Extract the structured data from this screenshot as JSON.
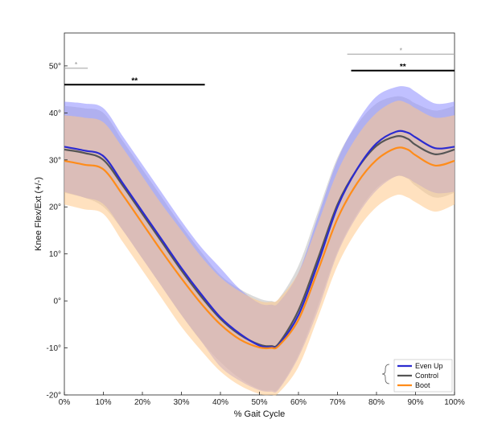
{
  "chart_data": {
    "type": "line",
    "xlabel": "% Gait Cycle",
    "ylabel": "Knee Flex/Ext (+/-)",
    "xlim": [
      0,
      100
    ],
    "ylim": [
      -20,
      57
    ],
    "x_ticks": [
      0,
      10,
      20,
      30,
      40,
      50,
      60,
      70,
      80,
      90,
      100
    ],
    "x_tick_labels": [
      "0%",
      "10%",
      "20%",
      "30%",
      "40%",
      "50%",
      "60%",
      "70%",
      "80%",
      "90%",
      "100%"
    ],
    "y_ticks": [
      -20,
      -10,
      0,
      10,
      20,
      30,
      40,
      50
    ],
    "y_tick_labels": [
      "-20°",
      "-10°",
      "0°",
      "10°",
      "20°",
      "30°",
      "40°",
      "50°"
    ],
    "grid": false,
    "legend_position": "bottom-right",
    "x": [
      0,
      5,
      10,
      15,
      20,
      25,
      30,
      35,
      40,
      45,
      50,
      53,
      55,
      60,
      65,
      70,
      75,
      80,
      85,
      88,
      90,
      95,
      100
    ],
    "series": [
      {
        "name": "Even Up",
        "color": "#2b2bd0",
        "band_color": "#8c8cff",
        "values": [
          32.8,
          32,
          30.8,
          25,
          19,
          13,
          7,
          1.5,
          -3.5,
          -7,
          -9.5,
          -9.8,
          -9.3,
          -3,
          8,
          20,
          28,
          33.5,
          36,
          35.8,
          34.8,
          32.5,
          32.8
        ],
        "upper": [
          42.4,
          42,
          41,
          35,
          29,
          23,
          17,
          11.5,
          7,
          2.5,
          -0.5,
          -0.8,
          -0.3,
          6,
          18,
          30,
          38,
          43.5,
          45.5,
          45.5,
          44.5,
          42,
          42.4
        ],
        "lower": [
          23.2,
          22,
          20.6,
          15,
          9,
          3,
          -3,
          -8.5,
          -14,
          -17,
          -19,
          -19.3,
          -18.8,
          -12,
          -2,
          10,
          18,
          23.5,
          26.5,
          26.1,
          25.1,
          23,
          23.2
        ]
      },
      {
        "name": "Control",
        "color": "#555555",
        "band_color": "#bdbdbd",
        "values": [
          32.2,
          31.5,
          30,
          24.5,
          18.5,
          12.5,
          6.5,
          1,
          -3.8,
          -7.2,
          -9.3,
          -9.6,
          -9,
          -2,
          9,
          20.5,
          28,
          33,
          35,
          34.5,
          33.2,
          31.2,
          32.2
        ],
        "upper": [
          41.5,
          41,
          40,
          34,
          28,
          22,
          16,
          10.5,
          5.5,
          2.5,
          0.5,
          0,
          0.5,
          7.5,
          19,
          30.5,
          37.5,
          42,
          43.5,
          43,
          42,
          40.5,
          41.5
        ],
        "lower": [
          23,
          22,
          20,
          15,
          9,
          3,
          -3,
          -8.5,
          -13,
          -16.5,
          -18.8,
          -19,
          -18.5,
          -11.5,
          -1,
          10.5,
          18.5,
          24,
          26.5,
          26,
          24.5,
          22,
          23
        ]
      },
      {
        "name": "Boot",
        "color": "#ff8c1a",
        "band_color": "#ffc98a",
        "values": [
          29.8,
          29,
          28,
          22.5,
          16.5,
          10.5,
          4.8,
          -0.5,
          -5,
          -8.2,
          -9.9,
          -10,
          -9.5,
          -4,
          6.5,
          17.5,
          25,
          30,
          32.5,
          32.2,
          31,
          28.8,
          29.8
        ],
        "upper": [
          39.5,
          39,
          38,
          32.5,
          26.5,
          20.5,
          15,
          9.5,
          5,
          2,
          0,
          -0.2,
          0.5,
          6,
          16.5,
          27.5,
          35,
          40,
          42.5,
          42,
          41,
          39,
          39.5
        ],
        "lower": [
          20.5,
          19.5,
          18.5,
          12.5,
          6.5,
          0.5,
          -5.5,
          -10.5,
          -15,
          -18,
          -19.8,
          -20,
          -19.5,
          -14,
          -3.5,
          7.5,
          15,
          20,
          22.5,
          22,
          21,
          19,
          20.5
        ]
      }
    ],
    "significance_bars": [
      {
        "x_start": 0,
        "x_end": 6,
        "y": 49.5,
        "color": "#aaaaaa",
        "marker": "*"
      },
      {
        "x_start": 0,
        "x_end": 36,
        "y": 46,
        "color": "#000000",
        "marker": "**"
      },
      {
        "x_start": 72.5,
        "x_end": 100,
        "y": 52.5,
        "color": "#aaaaaa",
        "marker": "*"
      },
      {
        "x_start": 73.5,
        "x_end": 100,
        "y": 49,
        "color": "#000000",
        "marker": "**"
      }
    ]
  }
}
